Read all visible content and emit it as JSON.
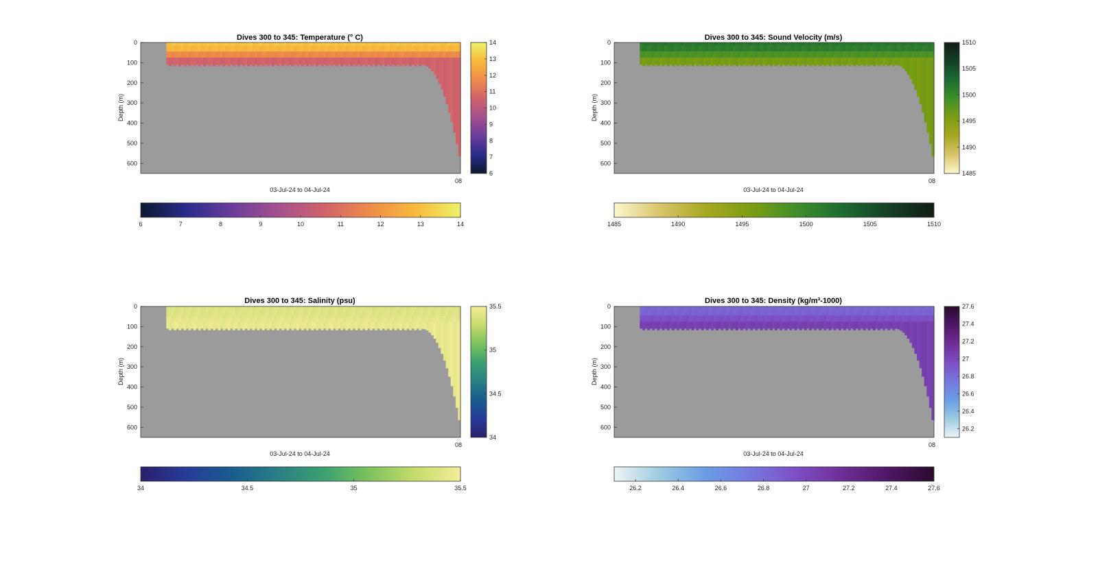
{
  "chart_data": [
    {
      "type": "heatmap",
      "title": "Dives 300 to 345: Temperature (° C)",
      "xlabel": "03-Jul-24 to 04-Jul-24",
      "ylabel": "Depth (m)",
      "x_tick_end": "08",
      "ylim": [
        0,
        650
      ],
      "yticks": [
        "0",
        "100",
        "200",
        "300",
        "400",
        "500",
        "600"
      ],
      "clim": [
        6,
        14
      ],
      "cbar_right_ticks": [
        "6",
        "7",
        "8",
        "9",
        "10",
        "11",
        "12",
        "13",
        "14"
      ],
      "cbar_bottom_ticks": [
        "6",
        "7",
        "8",
        "9",
        "10",
        "11",
        "12",
        "13",
        "14"
      ],
      "colormap": [
        "#0b1a2e",
        "#2a2a8c",
        "#6b3d9a",
        "#a3508f",
        "#d0616c",
        "#ee8a4a",
        "#f9b93a",
        "#ecf26a"
      ],
      "background": "#9b9b9b",
      "surface_value": 12.8,
      "deep_value": 10.6
    },
    {
      "type": "heatmap",
      "title": "Dives 300 to 345: Sound Velocity (m/s)",
      "xlabel": "03-Jul-24 to 04-Jul-24",
      "ylabel": "Depth (m)",
      "x_tick_end": "08",
      "ylim": [
        0,
        650
      ],
      "yticks": [
        "0",
        "100",
        "200",
        "300",
        "400",
        "500",
        "600"
      ],
      "clim": [
        1485,
        1510
      ],
      "cbar_right_ticks": [
        "1485",
        "1490",
        "1495",
        "1500",
        "1505",
        "1510"
      ],
      "cbar_bottom_ticks": [
        "1485",
        "1490",
        "1495",
        "1500",
        "1505",
        "1510"
      ],
      "colormap": [
        "#fbf7cf",
        "#d9c56a",
        "#a7a81f",
        "#7c9d12",
        "#3f8e2a",
        "#1c6b31",
        "#153f25",
        "#101c14"
      ],
      "background": "#9b9b9b",
      "surface_value": 1501,
      "deep_value": 1496
    },
    {
      "type": "heatmap",
      "title": "Dives 300 to 345: Salinity (psu)",
      "xlabel": "03-Jul-24 to 04-Jul-24",
      "ylabel": "Depth (m)",
      "x_tick_end": "08",
      "ylim": [
        0,
        650
      ],
      "yticks": [
        "0",
        "100",
        "200",
        "300",
        "400",
        "500",
        "600"
      ],
      "clim": [
        34,
        35.5
      ],
      "cbar_right_ticks": [
        "34",
        "34.5",
        "35",
        "35.5"
      ],
      "cbar_bottom_ticks": [
        "34",
        "34.5",
        "35",
        "35.5"
      ],
      "colormap": [
        "#2a1f6b",
        "#283b9a",
        "#185c8e",
        "#2a7f84",
        "#3aa070",
        "#7cc25d",
        "#c5dc6b",
        "#f4ec99"
      ],
      "background": "#9b9b9b",
      "surface_value": 35.4,
      "deep_value": 35.45
    },
    {
      "type": "heatmap",
      "title": "Dives 300 to 345: Density (kg/m³-1000)",
      "xlabel": "03-Jul-24 to 04-Jul-24",
      "ylabel": "Depth (m)",
      "x_tick_end": "08",
      "ylim": [
        0,
        650
      ],
      "yticks": [
        "0",
        "100",
        "200",
        "300",
        "400",
        "500",
        "600"
      ],
      "clim": [
        26.1,
        27.6
      ],
      "cbar_right_ticks": [
        "26.2",
        "26.4",
        "26.6",
        "26.8",
        "27",
        "27.2",
        "27.4",
        "27.6"
      ],
      "cbar_bottom_ticks": [
        "26.2",
        "26.4",
        "26.6",
        "26.8",
        "27",
        "27.2",
        "27.4",
        "27.6"
      ],
      "colormap": [
        "#eef4f5",
        "#9ccbe0",
        "#6a9de6",
        "#7677de",
        "#7e4ec4",
        "#6e2e96",
        "#4d1766",
        "#2a0b2c"
      ],
      "background": "#9b9b9b",
      "surface_value": 26.85,
      "deep_value": 27.05
    }
  ]
}
